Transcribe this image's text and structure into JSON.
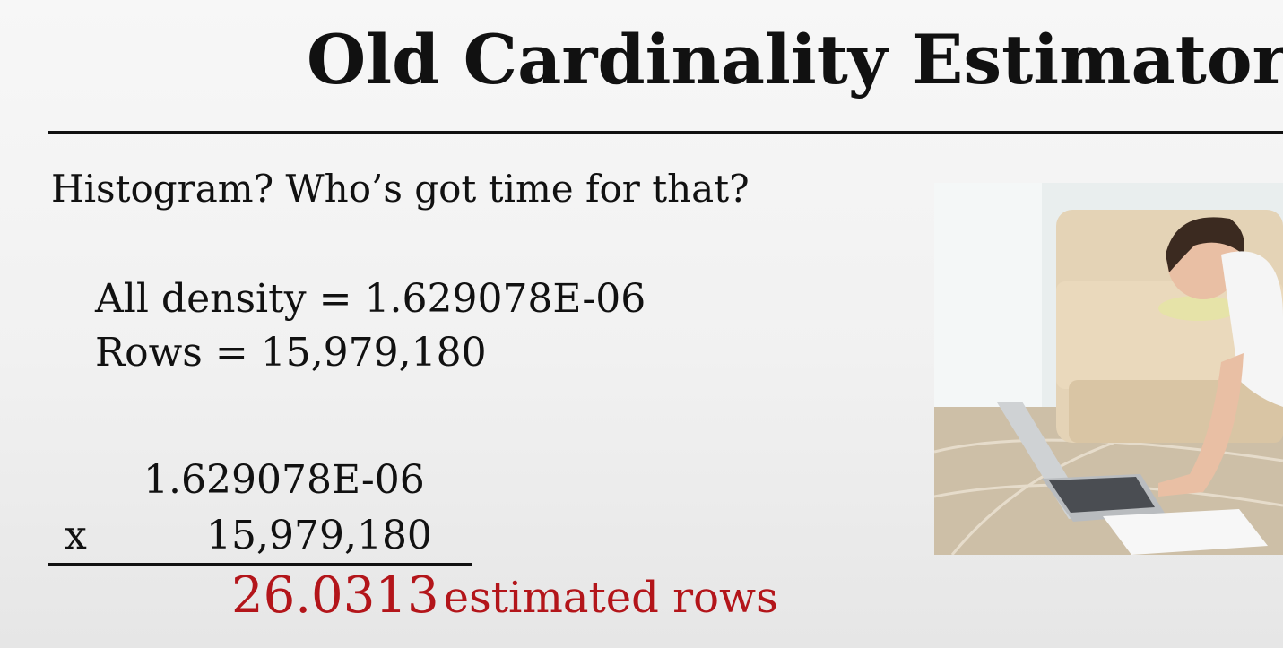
{
  "slide": {
    "title": "Old Cardinality Estimator",
    "subtitle": "Histogram? Who’s got time for that?",
    "formula_lines": [
      "All density = 1.629078E-06",
      "Rows = 15,979,180"
    ],
    "calculation": {
      "top_operand": "1.629078E-06",
      "operator": "x",
      "bottom_operand": "15,979,180",
      "result_value": "26.0313",
      "result_label": "estimated rows"
    },
    "accent_color": "#b3151a"
  }
}
